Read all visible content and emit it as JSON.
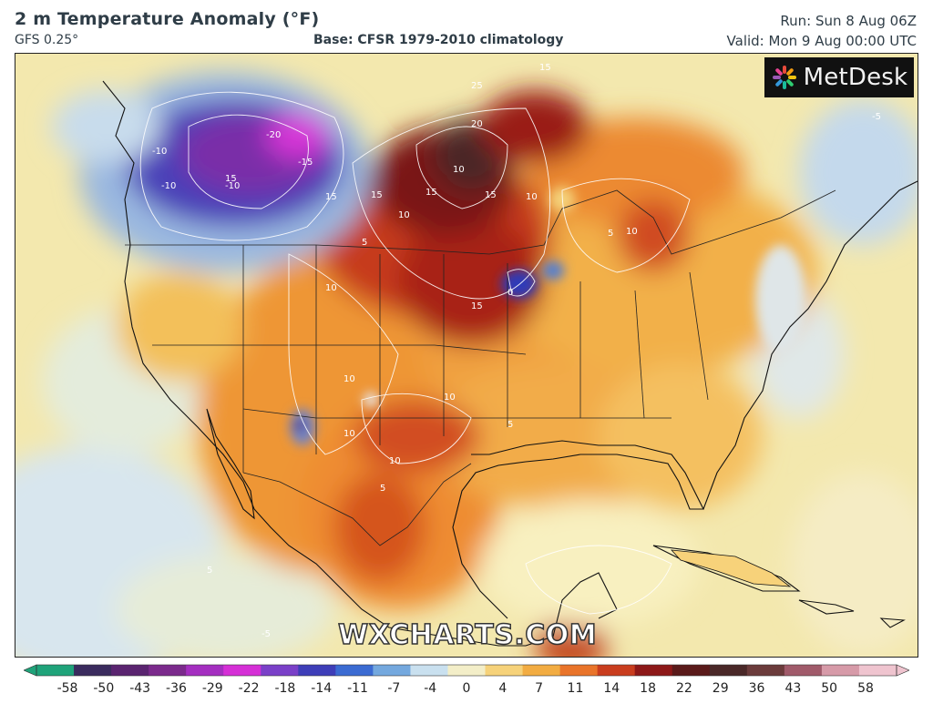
{
  "header": {
    "title": "2 m Temperature Anomaly (°F)",
    "model": "GFS 0.25°",
    "base": "Base: CFSR 1979-2010 climatology",
    "run": "Run: Sun 8 Aug 06Z",
    "valid": "Valid: Mon 9 Aug 00:00 UTC"
  },
  "logo": {
    "text": "MetDesk",
    "icon": "metdesk-flower-icon"
  },
  "watermark": "WXCHARTS.COM",
  "colorbar": {
    "ticks": [
      "-58",
      "-50",
      "-43",
      "-36",
      "-29",
      "-22",
      "-18",
      "-14",
      "-11",
      "-7",
      "-4",
      "0",
      "4",
      "7",
      "11",
      "14",
      "18",
      "22",
      "29",
      "36",
      "43",
      "50",
      "58"
    ],
    "colors": [
      "#1fa37a",
      "#3a2b5e",
      "#5a2470",
      "#7b2a8c",
      "#a42ec0",
      "#d52fd6",
      "#7a40c8",
      "#3e3eb8",
      "#3b6bd2",
      "#74a8de",
      "#c9e0ef",
      "#f3eec8",
      "#f6d27a",
      "#f2ac42",
      "#e9742a",
      "#c93d1e",
      "#8d1818",
      "#5a1a1a",
      "#4a2828",
      "#6b3b3b",
      "#a05a6a",
      "#d69aa8",
      "#efc4cf"
    ]
  },
  "map": {
    "contour_labels": [
      "15",
      "15",
      "25",
      "20",
      "15",
      "10",
      "15",
      "15",
      "10",
      "5",
      "10",
      "15",
      "0",
      "10",
      "10",
      "10",
      "5",
      "10",
      "10",
      "5",
      "5",
      "10",
      "-5",
      "-10",
      "-10",
      "-20",
      "-15",
      "-10",
      "15",
      "5",
      "-5"
    ]
  }
}
